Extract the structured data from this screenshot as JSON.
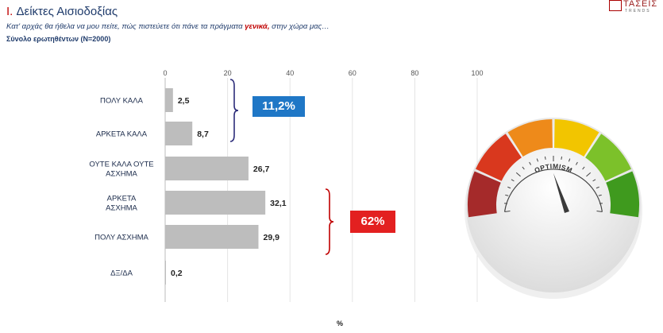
{
  "header": {
    "title_num": "I.",
    "title_text": "Δείκτες Αισιοδοξίας",
    "subtitle_before": "Κατ' αρχάς θα ήθελα να μου πείτε, πώς πιστεύετε ότι πάνε τα πράγματα ",
    "subtitle_highlight": "γενικά,",
    "subtitle_after": " στην χώρα μας…",
    "note": "Σύνολο ερωτηθέντων (N=2000)"
  },
  "logo": {
    "name": "ΤΑΣΕΙΣ",
    "sub": "TRENDS"
  },
  "chart_data": {
    "type": "bar",
    "orientation": "horizontal",
    "categories": [
      "ΠΟΛΥ ΚΑΛΑ",
      "ΑΡΚΕΤΑ ΚΑΛΑ",
      "ΟΥΤΕ ΚΑΛΑ ΟΥΤΕ ΑΣΧΗΜΑ",
      "ΑΡΚΕΤΑ ΑΣΧΗΜΑ",
      "ΠΟΛΥ ΑΣΧΗΜΑ",
      "ΔΞ/ΔΑ"
    ],
    "category_lines": [
      [
        "ΠΟΛΥ ΚΑΛΑ"
      ],
      [
        "ΑΡΚΕΤΑ ΚΑΛΑ"
      ],
      [
        "ΟΥΤΕ ΚΑΛΑ ΟΥΤΕ",
        "ΑΣΧΗΜΑ"
      ],
      [
        "ΑΡΚΕΤΑ",
        "ΑΣΧΗΜΑ"
      ],
      [
        "ΠΟΛΥ ΑΣΧΗΜΑ"
      ],
      [
        "ΔΞ/ΔΑ"
      ]
    ],
    "values": [
      2.5,
      8.7,
      26.7,
      32.1,
      29.9,
      0.2
    ],
    "value_labels": [
      "2,5",
      "8,7",
      "26,7",
      "32,1",
      "29,9",
      "0,2"
    ],
    "xticks": [
      0,
      20,
      40,
      60,
      80,
      100
    ],
    "xlim": [
      0,
      100
    ],
    "xlabel": "%",
    "grid": true,
    "bar_color": "#bdbdbd",
    "groups": [
      {
        "label": "11,2%",
        "range": [
          0,
          1
        ],
        "color": "#1f77c6",
        "bracket_color": "#2c2c7a"
      },
      {
        "label": "62%",
        "range": [
          3,
          4
        ],
        "color": "#e32020",
        "bracket_color": "#c00000"
      }
    ]
  },
  "gauge": {
    "label": "OPTIMISM",
    "segment_colors": [
      "#a52a2a",
      "#d9381e",
      "#ee8a1a",
      "#f2c500",
      "#7cc12a",
      "#3f9a1e"
    ]
  }
}
